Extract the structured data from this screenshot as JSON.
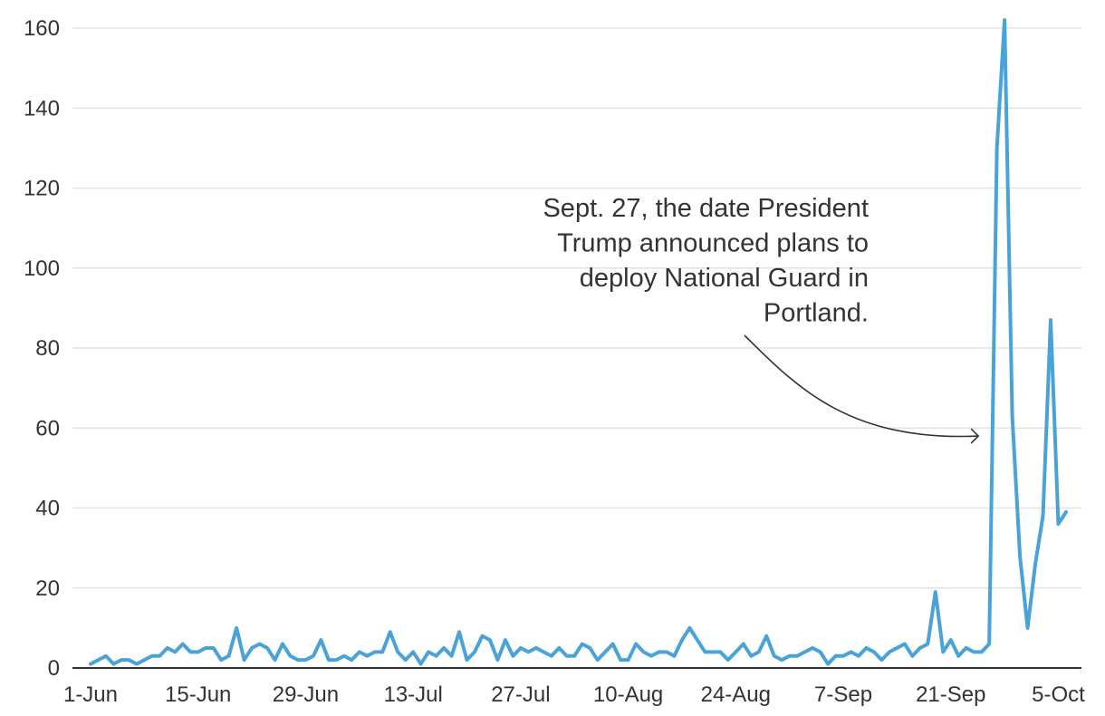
{
  "colors": {
    "line": "#4aa3d8",
    "text": "#333333",
    "grid": "#e3e3e3",
    "axis": "#333333"
  },
  "chart_data": {
    "type": "line",
    "title": "",
    "xlabel": "",
    "ylabel": "",
    "ylim": [
      0,
      160
    ],
    "yticks": [
      0,
      20,
      40,
      60,
      80,
      100,
      120,
      140,
      160
    ],
    "x_tick_labels": [
      "1-Jun",
      "15-Jun",
      "29-Jun",
      "13-Jul",
      "27-Jul",
      "10-Aug",
      "24-Aug",
      "7-Sep",
      "21-Sep",
      "5-Oct"
    ],
    "grid": true,
    "legend": "none",
    "x_start": "2025-06-01",
    "series": [
      {
        "values": [
          1,
          2,
          3,
          1,
          2,
          2,
          1,
          2,
          3,
          3,
          5,
          4,
          6,
          4,
          4,
          5,
          5,
          2,
          3,
          10,
          2,
          5,
          6,
          5,
          2,
          6,
          3,
          2,
          2,
          3,
          7,
          2,
          2,
          3,
          2,
          4,
          3,
          4,
          4,
          9,
          4,
          2,
          4,
          1,
          4,
          3,
          5,
          3,
          9,
          2,
          4,
          8,
          7,
          2,
          7,
          3,
          5,
          4,
          5,
          4,
          3,
          5,
          3,
          3,
          6,
          5,
          2,
          4,
          6,
          2,
          2,
          6,
          4,
          3,
          4,
          4,
          3,
          7,
          10,
          7,
          4,
          4,
          4,
          2,
          4,
          6,
          3,
          4,
          8,
          3,
          2,
          3,
          3,
          4,
          5,
          4,
          1,
          3,
          3,
          4,
          3,
          5,
          4,
          2,
          4,
          5,
          6,
          3,
          5,
          6,
          19,
          4,
          7,
          3,
          5,
          4,
          4,
          6,
          130,
          162,
          63,
          28,
          10,
          26,
          38,
          87,
          36,
          39
        ]
      }
    ],
    "annotations": [
      {
        "lines": [
          "Sept. 27, the date President",
          "Trump announced plans to",
          "deploy National Guard in",
          "Portland."
        ],
        "target_x": "2025-09-26",
        "target_y": 58
      }
    ]
  }
}
